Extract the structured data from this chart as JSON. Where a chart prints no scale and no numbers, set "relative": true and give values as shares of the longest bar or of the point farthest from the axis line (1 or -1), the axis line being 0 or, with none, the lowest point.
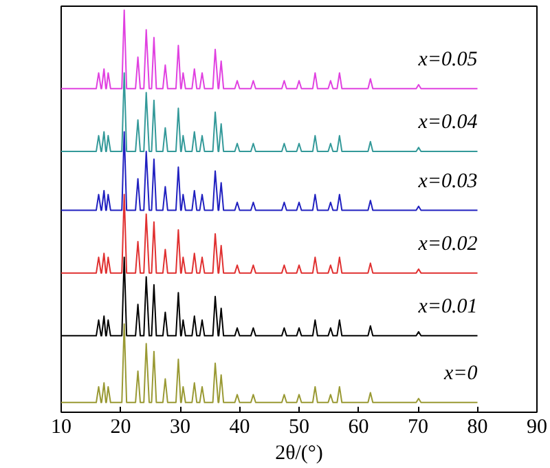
{
  "chart_data": {
    "type": "line",
    "relative": true,
    "xlabel": "2θ/(°)",
    "xlim": [
      10,
      90
    ],
    "xticks": [
      10,
      20,
      30,
      40,
      50,
      60,
      70,
      80,
      90
    ],
    "grid": false,
    "x": [
      10,
      15.9,
      16.3,
      16.7,
      16.8,
      17.2,
      17.5,
      17.6,
      17.9,
      18.3,
      20.2,
      20.6,
      21.0,
      22.5,
      22.9,
      23.3,
      23.9,
      24.3,
      24.8,
      25.2,
      25.6,
      26.0,
      27.1,
      27.5,
      27.9,
      29.3,
      29.7,
      30.1,
      30.2,
      30.5,
      30.9,
      32.0,
      32.4,
      32.8,
      33.3,
      33.7,
      34.1,
      35.5,
      35.9,
      36.4,
      36.5,
      36.9,
      37.3,
      39.2,
      39.6,
      40.0,
      41.9,
      42.3,
      42.7,
      47.1,
      47.5,
      47.9,
      49.6,
      50.0,
      50.4,
      52.3,
      52.7,
      53.1,
      54.9,
      55.3,
      55.7,
      56.4,
      56.8,
      57.2,
      61.6,
      62.0,
      62.4,
      69.7,
      70.1,
      70.5,
      80
    ],
    "series": [
      {
        "name": "x=0.05",
        "color": "#e040e0",
        "values": [
          0.8,
          0.8,
          0.84,
          0.8,
          0.8,
          0.85,
          0.8,
          0.8,
          0.84,
          0.8,
          0.8,
          1.0,
          0.8,
          0.8,
          0.88,
          0.8,
          0.8,
          0.95,
          0.8,
          0.8,
          0.93,
          0.8,
          0.8,
          0.86,
          0.8,
          0.8,
          0.91,
          0.8,
          0.8,
          0.84,
          0.8,
          0.8,
          0.85,
          0.8,
          0.8,
          0.84,
          0.8,
          0.8,
          0.9,
          0.8,
          0.8,
          0.87,
          0.8,
          0.8,
          0.82,
          0.8,
          0.8,
          0.82,
          0.8,
          0.8,
          0.82,
          0.8,
          0.8,
          0.82,
          0.8,
          0.8,
          0.84,
          0.8,
          0.8,
          0.82,
          0.8,
          0.8,
          0.84,
          0.8,
          0.8,
          0.825,
          0.8,
          0.8,
          0.81,
          0.8,
          0.8
        ]
      },
      {
        "name": "x=0.04",
        "color": "#339999",
        "values": [
          0.64,
          0.64,
          0.68,
          0.64,
          0.64,
          0.69,
          0.64,
          0.64,
          0.68,
          0.64,
          0.64,
          0.84,
          0.64,
          0.64,
          0.72,
          0.64,
          0.64,
          0.79,
          0.64,
          0.64,
          0.77,
          0.64,
          0.64,
          0.7,
          0.64,
          0.64,
          0.75,
          0.64,
          0.64,
          0.68,
          0.64,
          0.64,
          0.69,
          0.64,
          0.64,
          0.68,
          0.64,
          0.64,
          0.74,
          0.64,
          0.64,
          0.71,
          0.64,
          0.64,
          0.66,
          0.64,
          0.64,
          0.66,
          0.64,
          0.64,
          0.66,
          0.64,
          0.64,
          0.66,
          0.64,
          0.64,
          0.68,
          0.64,
          0.64,
          0.66,
          0.64,
          0.64,
          0.68,
          0.64,
          0.64,
          0.665,
          0.64,
          0.64,
          0.65,
          0.64,
          0.64
        ]
      },
      {
        "name": "x=0.03",
        "color": "#2020c0",
        "values": [
          0.49,
          0.49,
          0.53,
          0.49,
          0.49,
          0.54,
          0.49,
          0.49,
          0.53,
          0.49,
          0.49,
          0.69,
          0.49,
          0.49,
          0.57,
          0.49,
          0.49,
          0.64,
          0.49,
          0.49,
          0.62,
          0.49,
          0.49,
          0.55,
          0.49,
          0.49,
          0.6,
          0.49,
          0.49,
          0.53,
          0.49,
          0.49,
          0.54,
          0.49,
          0.49,
          0.53,
          0.49,
          0.49,
          0.59,
          0.49,
          0.49,
          0.56,
          0.49,
          0.49,
          0.51,
          0.49,
          0.49,
          0.51,
          0.49,
          0.49,
          0.51,
          0.49,
          0.49,
          0.51,
          0.49,
          0.49,
          0.53,
          0.49,
          0.49,
          0.51,
          0.49,
          0.49,
          0.53,
          0.49,
          0.49,
          0.515,
          0.49,
          0.49,
          0.5,
          0.49,
          0.49
        ]
      },
      {
        "name": "x=0.02",
        "color": "#e03030",
        "values": [
          0.33,
          0.33,
          0.37,
          0.33,
          0.33,
          0.38,
          0.33,
          0.33,
          0.37,
          0.33,
          0.33,
          0.53,
          0.33,
          0.33,
          0.41,
          0.33,
          0.33,
          0.48,
          0.33,
          0.33,
          0.46,
          0.33,
          0.33,
          0.39,
          0.33,
          0.33,
          0.44,
          0.33,
          0.33,
          0.37,
          0.33,
          0.33,
          0.38,
          0.33,
          0.33,
          0.37,
          0.33,
          0.33,
          0.43,
          0.33,
          0.33,
          0.4,
          0.33,
          0.33,
          0.35,
          0.33,
          0.33,
          0.35,
          0.33,
          0.33,
          0.35,
          0.33,
          0.33,
          0.35,
          0.33,
          0.33,
          0.37,
          0.33,
          0.33,
          0.35,
          0.33,
          0.33,
          0.37,
          0.33,
          0.33,
          0.355,
          0.33,
          0.33,
          0.34,
          0.33,
          0.33
        ]
      },
      {
        "name": "x=0.01",
        "color": "#000000",
        "values": [
          0.17,
          0.17,
          0.21,
          0.17,
          0.17,
          0.22,
          0.17,
          0.17,
          0.21,
          0.17,
          0.17,
          0.37,
          0.17,
          0.17,
          0.25,
          0.17,
          0.17,
          0.32,
          0.17,
          0.17,
          0.3,
          0.17,
          0.17,
          0.23,
          0.17,
          0.17,
          0.28,
          0.17,
          0.17,
          0.21,
          0.17,
          0.17,
          0.22,
          0.17,
          0.17,
          0.21,
          0.17,
          0.17,
          0.27,
          0.17,
          0.17,
          0.24,
          0.17,
          0.17,
          0.19,
          0.17,
          0.17,
          0.19,
          0.17,
          0.17,
          0.19,
          0.17,
          0.17,
          0.19,
          0.17,
          0.17,
          0.21,
          0.17,
          0.17,
          0.19,
          0.17,
          0.17,
          0.21,
          0.17,
          0.17,
          0.195,
          0.17,
          0.17,
          0.18,
          0.17,
          0.17
        ]
      },
      {
        "name": "x=0",
        "color": "#999933",
        "values": [
          0,
          0,
          0.04,
          0,
          0,
          0.05,
          0,
          0,
          0.04,
          0,
          0,
          0.2,
          0,
          0,
          0.08,
          0,
          0,
          0.15,
          0,
          0,
          0.13,
          0,
          0,
          0.06,
          0,
          0,
          0.11,
          0,
          0,
          0.04,
          0,
          0,
          0.05,
          0,
          0,
          0.04,
          0,
          0,
          0.1,
          0,
          0,
          0.07,
          0,
          0,
          0.02,
          0,
          0,
          0.02,
          0,
          0,
          0.02,
          0,
          0,
          0.02,
          0,
          0,
          0.04,
          0,
          0,
          0.02,
          0,
          0,
          0.04,
          0,
          0,
          0.025,
          0,
          0,
          0.01,
          0,
          0
        ]
      }
    ]
  }
}
